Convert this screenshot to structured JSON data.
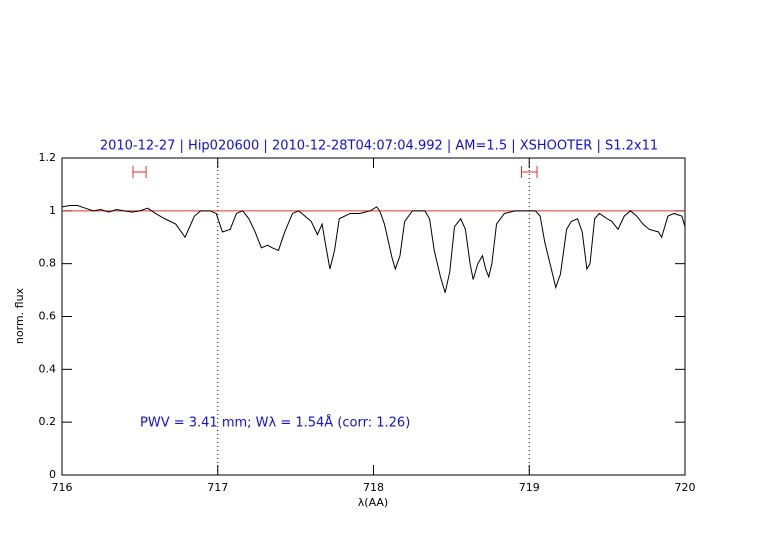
{
  "chart_data": {
    "type": "line",
    "title": "2010-12-27 | Hip020600 | 2010-12-28T04:07:04.992 | AM=1.5 | XSHOOTER | S1.2x11",
    "annotation": "PWV = 3.41 mm; Wλ = 1.54Å (corr: 1.26)",
    "xlabel": "λ(AA)",
    "ylabel": "norm. flux",
    "xlim": [
      716,
      720
    ],
    "ylim": [
      0,
      1.2
    ],
    "xticks": [
      716,
      717,
      718,
      719,
      720
    ],
    "yticks": [
      0,
      0.2,
      0.4,
      0.6,
      0.8,
      1,
      1.2
    ],
    "vlines": [
      717,
      719
    ],
    "hline": {
      "y": 1,
      "color": "#e03030"
    },
    "intervals": [
      {
        "x": [
          716.456,
          716.54
        ],
        "y": 1.147
      },
      {
        "x": [
          718.95,
          719.05
        ],
        "y": 1.147
      }
    ],
    "series": [
      {
        "name": "flux",
        "color": "#000000",
        "x": [
          716.0,
          716.05,
          716.1,
          716.15,
          716.2,
          716.25,
          716.3,
          716.35,
          716.4,
          716.45,
          716.5,
          716.55,
          716.6,
          716.66,
          716.73,
          716.79,
          716.85,
          716.89,
          716.95,
          716.99,
          717.03,
          717.08,
          717.12,
          717.16,
          717.2,
          717.24,
          717.28,
          717.32,
          717.35,
          717.39,
          717.43,
          717.48,
          717.52,
          717.56,
          717.6,
          717.64,
          717.67,
          717.69,
          717.72,
          717.75,
          717.78,
          717.85,
          717.91,
          717.98,
          718.02,
          718.04,
          718.07,
          718.12,
          718.14,
          718.17,
          718.2,
          718.25,
          718.33,
          718.36,
          718.39,
          718.43,
          718.46,
          718.49,
          718.52,
          718.56,
          718.59,
          718.62,
          718.64,
          718.67,
          718.7,
          718.72,
          718.74,
          718.76,
          718.79,
          718.84,
          718.91,
          718.97,
          719.04,
          719.07,
          719.1,
          719.15,
          719.17,
          719.2,
          719.24,
          719.27,
          719.31,
          719.34,
          719.37,
          719.39,
          719.42,
          719.45,
          719.5,
          719.53,
          719.57,
          719.61,
          719.65,
          719.69,
          719.73,
          719.77,
          719.83,
          719.85,
          719.89,
          719.93,
          719.98,
          720.0
        ],
        "values": [
          1.015,
          1.02,
          1.02,
          1.01,
          1.0,
          1.005,
          0.995,
          1.005,
          1.0,
          0.995,
          1.0,
          1.01,
          0.99,
          0.97,
          0.95,
          0.9,
          0.98,
          1.0,
          1.0,
          0.99,
          0.92,
          0.93,
          0.99,
          1.0,
          0.97,
          0.92,
          0.86,
          0.87,
          0.86,
          0.85,
          0.92,
          0.99,
          1.0,
          0.98,
          0.96,
          0.91,
          0.95,
          0.88,
          0.78,
          0.85,
          0.97,
          0.99,
          0.99,
          1.0,
          1.015,
          1.0,
          0.95,
          0.82,
          0.78,
          0.83,
          0.96,
          1.0,
          1.0,
          0.97,
          0.85,
          0.75,
          0.69,
          0.77,
          0.94,
          0.97,
          0.93,
          0.8,
          0.74,
          0.8,
          0.83,
          0.78,
          0.75,
          0.8,
          0.95,
          0.99,
          1.0,
          1.0,
          1.0,
          0.98,
          0.88,
          0.76,
          0.71,
          0.76,
          0.93,
          0.96,
          0.97,
          0.92,
          0.78,
          0.8,
          0.97,
          0.99,
          0.97,
          0.96,
          0.93,
          0.98,
          1.0,
          0.98,
          0.95,
          0.93,
          0.92,
          0.9,
          0.98,
          0.99,
          0.98,
          0.94
        ]
      }
    ]
  }
}
